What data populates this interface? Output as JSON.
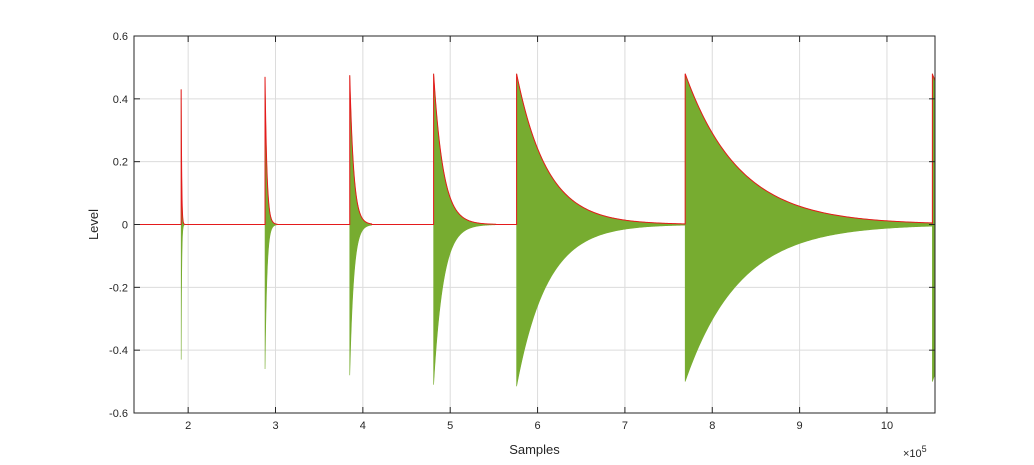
{
  "chart_data": {
    "type": "area",
    "title": "",
    "xlabel": "Samples",
    "ylabel": "Level",
    "xlim": [
      1.38,
      10.55
    ],
    "ylim": [
      -0.6,
      0.6
    ],
    "x_scale_label": "×10",
    "x_scale_exponent": "5",
    "xticks": [
      2,
      3,
      4,
      5,
      6,
      7,
      8,
      9,
      10
    ],
    "yticks": [
      -0.6,
      -0.4,
      -0.2,
      0,
      0.2,
      0.4,
      0.6
    ],
    "xtick_labels": [
      "2",
      "3",
      "4",
      "5",
      "6",
      "7",
      "8",
      "9",
      "10"
    ],
    "ytick_labels": [
      "-0.6",
      "-0.4",
      "-0.2",
      "0",
      "0.2",
      "0.4",
      "0.6"
    ],
    "grid": true,
    "colors": {
      "signal": "#77ac30",
      "envelope": "#e41a1c",
      "grid": "#dcdcdc",
      "axes": "#262626"
    },
    "bursts": [
      {
        "onset": 1.92,
        "end": 1.97,
        "peak": 0.43,
        "trough": -0.43,
        "decay": 0.006
      },
      {
        "onset": 2.88,
        "end": 3.02,
        "peak": 0.47,
        "trough": -0.46,
        "decay": 0.022
      },
      {
        "onset": 3.85,
        "end": 4.1,
        "peak": 0.475,
        "trough": -0.48,
        "decay": 0.045
      },
      {
        "onset": 4.81,
        "end": 5.52,
        "peak": 0.48,
        "trough": -0.51,
        "decay": 0.11
      },
      {
        "onset": 5.76,
        "end": 7.69,
        "peak": 0.48,
        "trough": -0.515,
        "decay": 0.35
      },
      {
        "onset": 7.69,
        "end": 10.52,
        "peak": 0.48,
        "trough": -0.5,
        "decay": 0.62
      },
      {
        "onset": 10.52,
        "end": 10.55,
        "peak": 0.48,
        "trough": -0.5,
        "decay": 0.62
      }
    ]
  }
}
